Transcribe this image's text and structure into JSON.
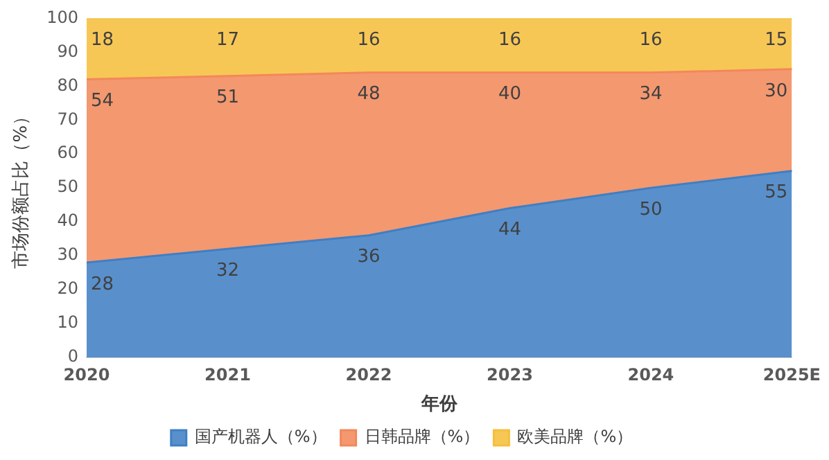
{
  "chart_data": {
    "type": "area",
    "xlabel": "年份",
    "ylabel": "市场份额占比（%）",
    "categories": [
      "2020",
      "2021",
      "2022",
      "2023",
      "2024",
      "2025E"
    ],
    "stacked": true,
    "ylim": [
      0,
      100
    ],
    "yticks": [
      0,
      10,
      20,
      30,
      40,
      50,
      60,
      70,
      80,
      90,
      100
    ],
    "grid": false,
    "legend": "bottom",
    "data_labels": true,
    "series": [
      {
        "name": "国产机器人（%）",
        "color": "#3f7fc4",
        "values": [
          28,
          32,
          36,
          44,
          50,
          55
        ]
      },
      {
        "name": "日韩品牌（%）",
        "color": "#f2885a",
        "values": [
          54,
          51,
          48,
          40,
          34,
          30
        ]
      },
      {
        "name": "欧美品牌（%）",
        "color": "#f6be3c",
        "values": [
          18,
          17,
          16,
          16,
          16,
          15
        ]
      }
    ]
  }
}
